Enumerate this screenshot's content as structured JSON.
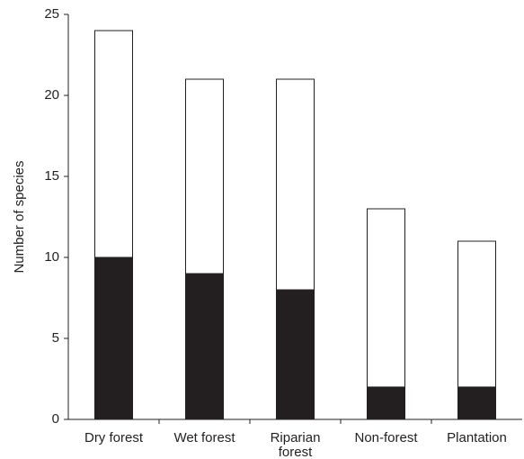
{
  "chart_data": {
    "type": "stacked_bar",
    "y_label": "Number of species",
    "categories": [
      "Dry forest",
      "Wet forest",
      "Riparian forest",
      "Non-forest",
      "Plantation"
    ],
    "series": [
      {
        "color": "#231f20",
        "values": [
          10,
          9,
          8,
          2,
          2
        ]
      },
      {
        "color": "#ffffff",
        "values": [
          14,
          12,
          13,
          11,
          9
        ]
      }
    ],
    "ylim": [
      0,
      25
    ],
    "yticks": [
      0,
      5,
      10,
      15,
      20,
      25
    ],
    "grid": false
  }
}
